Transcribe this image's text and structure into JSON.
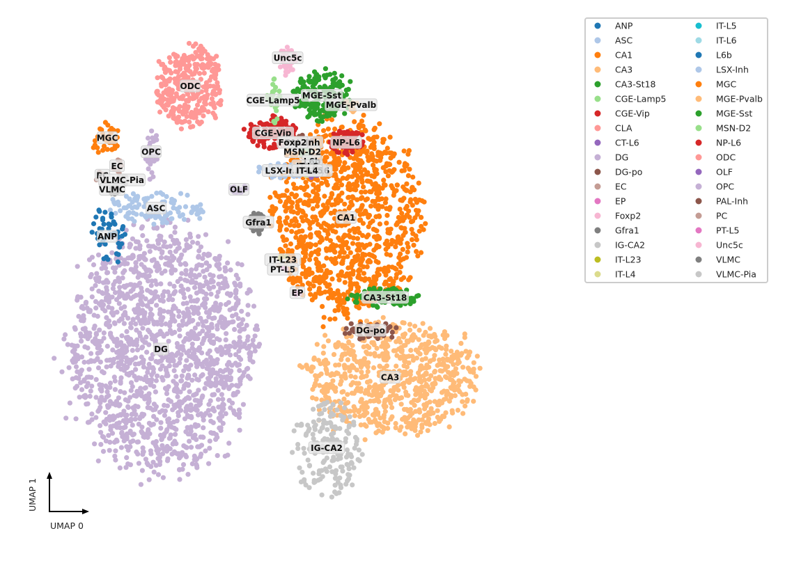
{
  "chart_data": {
    "type": "scatter",
    "title": "",
    "xlabel": "UMAP 0",
    "ylabel": "UMAP 1",
    "axis_style": "arrows-only",
    "grid": false,
    "legend_placement": "outside-right-top",
    "legend_columns": 2,
    "categories": [
      {
        "name": "ANP",
        "color": "#1f77b4"
      },
      {
        "name": "ASC",
        "color": "#aec7e8"
      },
      {
        "name": "CA1",
        "color": "#ff7f0e"
      },
      {
        "name": "CA3",
        "color": "#ffbb78"
      },
      {
        "name": "CA3-St18",
        "color": "#2ca02c"
      },
      {
        "name": "CGE-Lamp5",
        "color": "#98df8a"
      },
      {
        "name": "CGE-Vip",
        "color": "#d62728"
      },
      {
        "name": "CLA",
        "color": "#ff9896"
      },
      {
        "name": "CT-L6",
        "color": "#9467bd"
      },
      {
        "name": "DG",
        "color": "#c5b0d5"
      },
      {
        "name": "DG-po",
        "color": "#8c564b"
      },
      {
        "name": "EC",
        "color": "#c49c94"
      },
      {
        "name": "EP",
        "color": "#e377c2"
      },
      {
        "name": "Foxp2",
        "color": "#f7b6d2"
      },
      {
        "name": "Gfra1",
        "color": "#7f7f7f"
      },
      {
        "name": "IG-CA2",
        "color": "#c7c7c7"
      },
      {
        "name": "IT-L23",
        "color": "#bcbd22"
      },
      {
        "name": "IT-L4",
        "color": "#dbdb8d"
      },
      {
        "name": "IT-L5",
        "color": "#17becf"
      },
      {
        "name": "IT-L6",
        "color": "#9edae5"
      },
      {
        "name": "L6b",
        "color": "#1f77b4"
      },
      {
        "name": "LSX-Inh",
        "color": "#aec7e8"
      },
      {
        "name": "MGC",
        "color": "#ff7f0e"
      },
      {
        "name": "MGE-Pvalb",
        "color": "#ffbb78"
      },
      {
        "name": "MGE-Sst",
        "color": "#2ca02c"
      },
      {
        "name": "MSN-D2",
        "color": "#98df8a"
      },
      {
        "name": "NP-L6",
        "color": "#d62728"
      },
      {
        "name": "ODC",
        "color": "#ff9896"
      },
      {
        "name": "OLF",
        "color": "#9467bd"
      },
      {
        "name": "OPC",
        "color": "#c5b0d5"
      },
      {
        "name": "PAL-Inh",
        "color": "#8c564b"
      },
      {
        "name": "PC",
        "color": "#c49c94"
      },
      {
        "name": "PT-L5",
        "color": "#e377c2"
      },
      {
        "name": "Unc5c",
        "color": "#f7b6d2"
      },
      {
        "name": "VLMC",
        "color": "#7f7f7f"
      },
      {
        "name": "VLMC-Pia",
        "color": "#c7c7c7"
      }
    ],
    "clusters": [
      {
        "name": "DG",
        "label": "DG",
        "center": [
          0.23,
          0.36
        ],
        "spread": [
          0.11,
          0.15
        ],
        "count": 1600,
        "shape": "blob"
      },
      {
        "name": "CA1",
        "label": "CA1",
        "center": [
          0.61,
          0.64
        ],
        "spread": [
          0.09,
          0.12
        ],
        "count": 1100,
        "shape": "blob"
      },
      {
        "name": "CA3",
        "label": "CA3",
        "center": [
          0.7,
          0.3
        ],
        "spread": [
          0.1,
          0.07
        ],
        "count": 750,
        "shape": "blob"
      },
      {
        "name": "IG-CA2",
        "label": "IG-CA2",
        "center": [
          0.57,
          0.15
        ],
        "spread": [
          0.04,
          0.06
        ],
        "count": 180,
        "shape": "blob"
      },
      {
        "name": "ODC",
        "label": "ODC",
        "center": [
          0.29,
          0.92
        ],
        "spread": [
          0.04,
          0.05
        ],
        "count": 320,
        "shape": "blob"
      },
      {
        "name": "MGE-Sst",
        "label": "MGE-Sst",
        "center": [
          0.56,
          0.9
        ],
        "spread": [
          0.035,
          0.03
        ],
        "count": 160,
        "shape": "blob"
      },
      {
        "name": "CA3-St18",
        "label": "CA3-St18",
        "center": [
          0.69,
          0.47
        ],
        "spread": [
          0.04,
          0.012
        ],
        "count": 90,
        "shape": "blob"
      },
      {
        "name": "DG-po",
        "label": "DG-po",
        "center": [
          0.66,
          0.4
        ],
        "spread": [
          0.03,
          0.012
        ],
        "count": 40,
        "shape": "blob"
      },
      {
        "name": "NP-L6",
        "label": "NP-L6",
        "center": [
          0.61,
          0.8
        ],
        "spread": [
          0.02,
          0.015
        ],
        "count": 80,
        "shape": "blob"
      },
      {
        "name": "CGE-Vip",
        "label": "CGE-Vip",
        "center": [
          0.46,
          0.82
        ],
        "spread": [
          0.03,
          0.02
        ],
        "count": 110,
        "shape": "blob"
      },
      {
        "name": "ASC",
        "label": "ASC",
        "center": [
          0.22,
          0.66
        ],
        "spread": [
          0.06,
          0.02
        ],
        "count": 110,
        "shape": "blob"
      },
      {
        "name": "ANP",
        "label": "ANP",
        "center": [
          0.12,
          0.6
        ],
        "spread": [
          0.02,
          0.035
        ],
        "count": 45,
        "shape": "blob"
      },
      {
        "name": "MGC",
        "label": "MGC",
        "center": [
          0.12,
          0.81
        ],
        "spread": [
          0.02,
          0.02
        ],
        "count": 35,
        "shape": "blob"
      },
      {
        "name": "Gfra1",
        "label": "Gfra1",
        "center": [
          0.43,
          0.63
        ],
        "spread": [
          0.01,
          0.015
        ],
        "count": 40,
        "shape": "blob"
      },
      {
        "name": "OLF",
        "label": "OLF",
        "center": [
          0.39,
          0.7
        ],
        "spread": [
          0.01,
          0.006
        ],
        "count": 15,
        "shape": "blob"
      },
      {
        "name": "Unc5c",
        "label": "Unc5c",
        "center": [
          0.49,
          0.98
        ],
        "spread": [
          0.01,
          0.018
        ],
        "count": 35,
        "shape": "blob"
      },
      {
        "name": "CGE-Lamp5",
        "label": "CGE-Lamp5",
        "center": [
          0.46,
          0.89
        ],
        "spread": [
          0.008,
          0.03
        ],
        "count": 22,
        "shape": "blob"
      },
      {
        "name": "MGE-Pvalb",
        "label": "MGE-Pvalb",
        "center": [
          0.62,
          0.88
        ],
        "spread": [
          0.008,
          0.01
        ],
        "count": 12,
        "shape": "blob"
      },
      {
        "name": "OPC",
        "label": "OPC",
        "center": [
          0.21,
          0.78
        ],
        "spread": [
          0.008,
          0.03
        ],
        "count": 30,
        "shape": "blob"
      },
      {
        "name": "LSX-Inh",
        "label": "LSX-Inh",
        "center": [
          0.48,
          0.74
        ],
        "spread": [
          0.03,
          0.012
        ],
        "count": 30,
        "shape": "blob"
      },
      {
        "name": "PAL-Inh",
        "label": "PAL-Inh",
        "center": [
          0.52,
          0.8
        ],
        "spread": [
          0.012,
          0.01
        ],
        "count": 14,
        "shape": "blob"
      },
      {
        "name": "MSN-D2",
        "label": "MSN-D2",
        "center": [
          0.52,
          0.78
        ],
        "spread": [
          0.01,
          0.008
        ],
        "count": 10,
        "shape": "blob"
      },
      {
        "name": "Foxp2",
        "label": "Foxp2",
        "center": [
          0.5,
          0.8
        ],
        "spread": [
          0.008,
          0.008
        ],
        "count": 8,
        "shape": "blob"
      },
      {
        "name": "CT-L6",
        "label": "CT-L6",
        "center": [
          0.55,
          0.74
        ],
        "spread": [
          0.01,
          0.01
        ],
        "count": 14,
        "shape": "blob"
      },
      {
        "name": "L6b",
        "label": "L6b",
        "center": [
          0.54,
          0.76
        ],
        "spread": [
          0.006,
          0.006
        ],
        "count": 8,
        "shape": "blob"
      },
      {
        "name": "IT-L6",
        "label": "IT-L6",
        "center": [
          0.53,
          0.75
        ],
        "spread": [
          0.006,
          0.006
        ],
        "count": 8,
        "shape": "blob"
      },
      {
        "name": "IT-L5",
        "label": "IT-L5",
        "center": [
          0.54,
          0.74
        ],
        "spread": [
          0.006,
          0.006
        ],
        "count": 6,
        "shape": "blob"
      },
      {
        "name": "IT-L4",
        "label": "IT-L4",
        "center": [
          0.53,
          0.74
        ],
        "spread": [
          0.006,
          0.006
        ],
        "count": 6,
        "shape": "blob"
      },
      {
        "name": "EC",
        "label": "EC",
        "center": [
          0.14,
          0.75
        ],
        "spread": [
          0.008,
          0.01
        ],
        "count": 8,
        "shape": "blob"
      },
      {
        "name": "PC",
        "label": "PC",
        "center": [
          0.11,
          0.73
        ],
        "spread": [
          0.008,
          0.008
        ],
        "count": 8,
        "shape": "blob"
      },
      {
        "name": "VLMC-Pia",
        "label": "VLMC-Pia",
        "center": [
          0.15,
          0.72
        ],
        "spread": [
          0.008,
          0.008
        ],
        "count": 8,
        "shape": "blob"
      },
      {
        "name": "VLMC",
        "label": "VLMC",
        "center": [
          0.13,
          0.7
        ],
        "spread": [
          0.01,
          0.008
        ],
        "count": 12,
        "shape": "blob"
      },
      {
        "name": "IT-L23",
        "label": "IT-L23",
        "center": [
          0.48,
          0.55
        ],
        "spread": [
          0.006,
          0.006
        ],
        "count": 4,
        "shape": "blob"
      },
      {
        "name": "PT-L5",
        "label": "PT-L5",
        "center": [
          0.48,
          0.53
        ],
        "spread": [
          0.006,
          0.006
        ],
        "count": 4,
        "shape": "blob"
      },
      {
        "name": "EP",
        "label": "EP",
        "center": [
          0.51,
          0.48
        ],
        "spread": [
          0.006,
          0.006
        ],
        "count": 4,
        "shape": "blob"
      },
      {
        "name": "CLA",
        "label": "",
        "center": [
          0.28,
          0.93
        ],
        "spread": [
          0.005,
          0.005
        ],
        "count": 0,
        "shape": "blob"
      }
    ]
  }
}
